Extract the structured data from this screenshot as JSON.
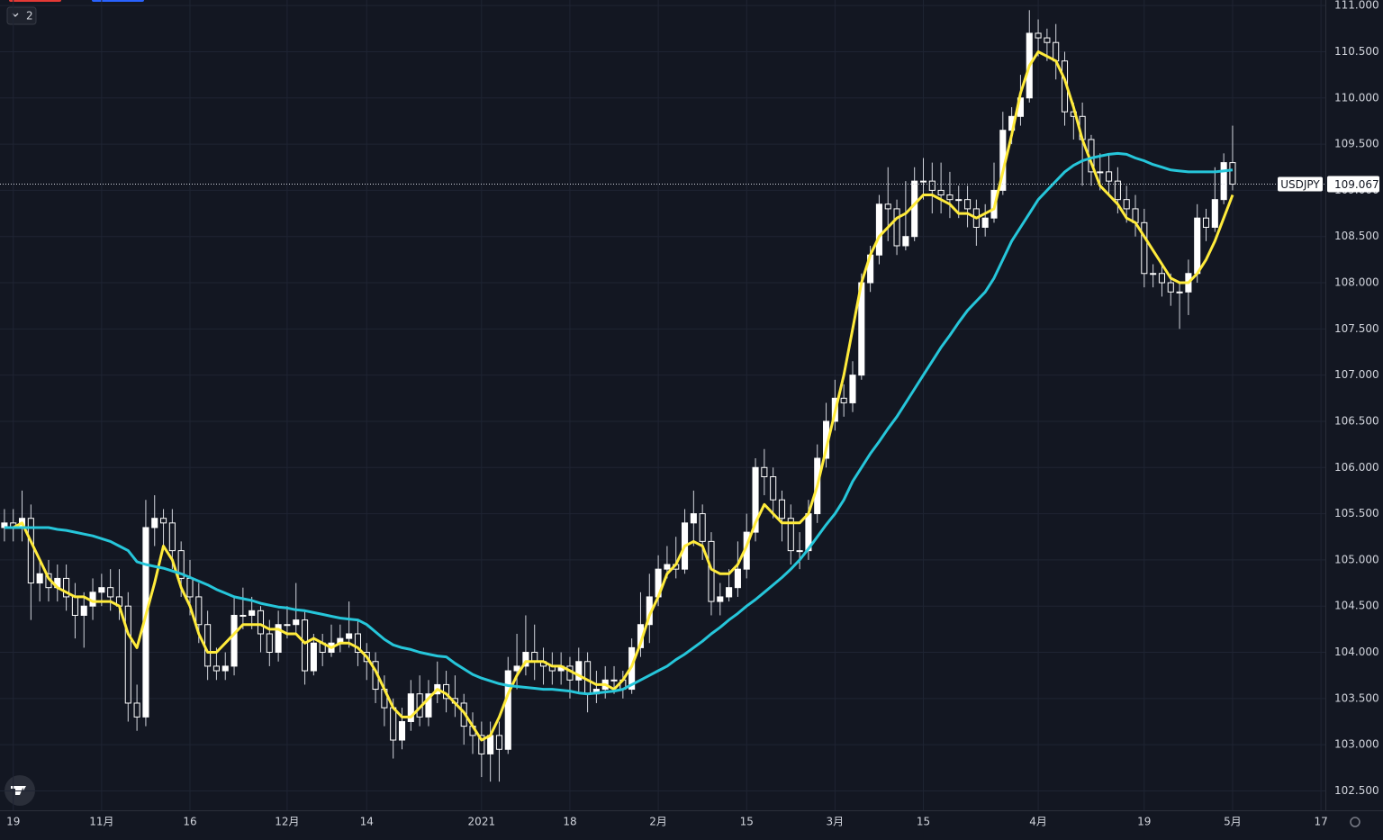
{
  "toolbar": {
    "badge": "2"
  },
  "chart_data": {
    "type": "candlestick",
    "symbol": "USDJPY",
    "background": "#131722",
    "grid": true,
    "up_color": "#ffffff",
    "down_color": "#131722",
    "wick_color": "#d1d4dc",
    "categories": [
      null,
      "19",
      null,
      null,
      null,
      null,
      null,
      null,
      null,
      null,
      null,
      "11月",
      null,
      null,
      null,
      null,
      null,
      null,
      null,
      null,
      null,
      "16",
      null,
      null,
      null,
      null,
      null,
      null,
      null,
      null,
      null,
      null,
      "12月",
      null,
      null,
      null,
      null,
      null,
      null,
      null,
      null,
      "14",
      null,
      null,
      null,
      null,
      null,
      null,
      null,
      null,
      null,
      null,
      null,
      null,
      "2021",
      null,
      null,
      null,
      null,
      null,
      null,
      null,
      null,
      null,
      "18",
      null,
      null,
      null,
      null,
      null,
      null,
      null,
      null,
      null,
      "2月",
      null,
      null,
      null,
      null,
      null,
      null,
      null,
      null,
      null,
      "15",
      null,
      null,
      null,
      null,
      null,
      null,
      null,
      null,
      null,
      "3月",
      null,
      null,
      null,
      null,
      null,
      null,
      null,
      null,
      null,
      "15",
      null,
      null,
      null,
      null,
      null,
      null,
      null,
      null,
      null,
      null,
      null,
      null,
      "4月",
      null,
      null,
      null,
      null,
      null,
      null,
      null,
      null,
      null,
      null,
      null,
      "19",
      null,
      null,
      null,
      null,
      null,
      null,
      null,
      null,
      null,
      "5月",
      null,
      null,
      null,
      null,
      null,
      null,
      null,
      null,
      null,
      "17"
    ],
    "open": [
      105.35,
      105.4,
      105.35,
      105.45,
      104.75,
      104.85,
      104.7,
      104.8,
      104.6,
      104.4,
      104.5,
      104.65,
      104.7,
      104.6,
      104.5,
      103.45,
      103.3,
      105.35,
      105.45,
      105.4,
      105.1,
      104.8,
      104.6,
      104.3,
      103.85,
      103.8,
      103.85,
      104.4,
      104.4,
      104.45,
      104.2,
      104.0,
      104.3,
      104.3,
      104.35,
      103.8,
      104.1,
      104.0,
      104.1,
      104.15,
      104.2,
      104.0,
      103.9,
      103.6,
      103.4,
      103.05,
      103.25,
      103.55,
      103.3,
      103.55,
      103.65,
      103.5,
      103.45,
      103.2,
      103.1,
      102.9,
      103.1,
      102.95,
      103.8,
      103.85,
      104.0,
      103.9,
      103.85,
      103.8,
      103.85,
      103.7,
      103.9,
      103.55,
      103.6,
      103.7,
      103.7,
      103.6,
      104.05,
      104.3,
      104.6,
      104.9,
      104.95,
      104.9,
      105.4,
      105.5,
      105.2,
      104.55,
      104.6,
      104.7,
      104.9,
      105.3,
      106.0,
      105.9,
      105.65,
      105.45,
      105.1,
      105.1,
      105.5,
      106.1,
      106.5,
      106.75,
      106.7,
      107.0,
      108.0,
      108.3,
      108.85,
      108.8,
      108.4,
      108.5,
      109.1,
      109.1,
      109.0,
      108.95,
      108.9,
      108.9,
      108.8,
      108.6,
      108.7,
      109.0,
      109.65,
      109.8,
      110.0,
      110.7,
      110.65,
      110.6,
      110.4,
      109.85,
      109.8,
      109.55,
      109.2,
      109.2,
      109.1,
      108.9,
      108.8,
      108.65,
      108.1,
      108.1,
      108.0,
      107.9,
      107.9,
      108.1,
      108.7,
      108.6,
      108.9,
      109.3,
      null,
      null,
      null,
      null,
      null,
      null,
      null,
      null,
      null,
      null
    ],
    "high": [
      105.55,
      105.55,
      105.75,
      105.6,
      105.0,
      105.0,
      104.95,
      104.95,
      104.75,
      104.65,
      104.8,
      104.85,
      104.9,
      104.9,
      104.65,
      103.65,
      105.65,
      105.7,
      105.55,
      105.55,
      105.2,
      105.0,
      104.75,
      104.45,
      104.05,
      104.0,
      104.6,
      104.7,
      104.6,
      104.5,
      104.35,
      104.45,
      104.5,
      104.75,
      104.45,
      104.2,
      104.2,
      104.3,
      104.3,
      104.55,
      104.35,
      104.1,
      104.0,
      103.75,
      103.5,
      103.4,
      103.7,
      103.75,
      103.7,
      103.9,
      103.8,
      103.75,
      103.55,
      103.35,
      103.25,
      103.25,
      103.25,
      103.95,
      104.2,
      104.4,
      104.3,
      104.05,
      104.0,
      104.0,
      103.95,
      104.05,
      104.0,
      103.8,
      103.85,
      103.85,
      103.8,
      104.15,
      104.65,
      104.85,
      105.05,
      105.15,
      105.25,
      105.55,
      105.75,
      105.6,
      105.3,
      104.75,
      104.9,
      105.2,
      105.5,
      106.1,
      106.2,
      106.0,
      105.75,
      105.6,
      105.3,
      105.65,
      106.25,
      106.7,
      106.95,
      106.9,
      107.15,
      108.1,
      108.4,
      108.95,
      109.25,
      108.9,
      109.1,
      109.25,
      109.35,
      109.3,
      109.3,
      109.2,
      109.05,
      109.05,
      108.9,
      108.85,
      109.3,
      109.85,
      109.9,
      110.25,
      110.95,
      110.85,
      110.75,
      110.8,
      110.5,
      109.95,
      109.95,
      109.6,
      109.4,
      109.4,
      109.25,
      109.05,
      108.95,
      108.8,
      108.2,
      108.2,
      108.1,
      108.0,
      108.25,
      108.85,
      108.8,
      109.25,
      109.4,
      109.7,
      null,
      null,
      null,
      null,
      null,
      null,
      null,
      null,
      null,
      null
    ],
    "low": [
      105.2,
      105.2,
      105.2,
      104.35,
      104.55,
      104.55,
      104.55,
      104.45,
      104.15,
      104.05,
      104.35,
      104.5,
      104.45,
      104.35,
      103.25,
      103.15,
      103.2,
      105.15,
      105.1,
      104.9,
      104.6,
      104.4,
      104.1,
      103.7,
      103.7,
      103.7,
      103.75,
      104.25,
      104.25,
      104.0,
      103.85,
      103.9,
      104.15,
      104.2,
      103.65,
      103.75,
      103.85,
      103.95,
      104.0,
      104.05,
      103.85,
      103.7,
      103.45,
      103.2,
      102.85,
      102.95,
      103.15,
      103.2,
      103.2,
      103.45,
      103.35,
      103.3,
      103.0,
      102.9,
      102.65,
      102.6,
      102.6,
      102.9,
      103.6,
      103.75,
      103.7,
      103.65,
      103.65,
      103.65,
      103.5,
      103.55,
      103.35,
      103.45,
      103.5,
      103.55,
      103.5,
      103.55,
      103.95,
      104.1,
      104.5,
      104.8,
      104.8,
      104.85,
      105.15,
      105.0,
      104.4,
      104.4,
      104.55,
      104.6,
      104.8,
      105.2,
      105.7,
      105.45,
      105.2,
      104.95,
      104.9,
      105.0,
      105.4,
      106.0,
      106.4,
      106.55,
      106.6,
      106.95,
      107.9,
      108.2,
      108.45,
      108.3,
      108.35,
      108.45,
      108.9,
      108.75,
      108.75,
      108.7,
      108.7,
      108.6,
      108.4,
      108.5,
      108.65,
      108.95,
      109.5,
      109.7,
      109.95,
      110.45,
      110.4,
      110.2,
      109.7,
      109.55,
      109.05,
      109.05,
      109.0,
      108.95,
      108.75,
      108.65,
      108.5,
      107.95,
      107.95,
      107.85,
      107.75,
      107.5,
      107.65,
      108.0,
      108.45,
      108.55,
      108.85,
      109.0,
      null,
      null,
      null,
      null,
      null,
      null,
      null,
      null,
      null,
      null
    ],
    "close": [
      105.4,
      105.35,
      105.45,
      104.75,
      104.85,
      104.7,
      104.8,
      104.6,
      104.4,
      104.5,
      104.65,
      104.7,
      104.6,
      104.5,
      103.45,
      103.3,
      105.35,
      105.45,
      105.4,
      105.1,
      104.8,
      104.6,
      104.3,
      103.85,
      103.8,
      103.85,
      104.4,
      104.4,
      104.45,
      104.2,
      104.0,
      104.3,
      104.3,
      104.35,
      103.8,
      104.1,
      104.0,
      104.1,
      104.15,
      104.2,
      104.0,
      103.9,
      103.6,
      103.4,
      103.05,
      103.25,
      103.55,
      103.3,
      103.55,
      103.65,
      103.5,
      103.45,
      103.2,
      103.1,
      102.9,
      103.1,
      102.95,
      103.8,
      103.85,
      104.0,
      103.9,
      103.85,
      103.8,
      103.85,
      103.7,
      103.9,
      103.55,
      103.6,
      103.7,
      103.7,
      103.6,
      104.05,
      104.3,
      104.6,
      104.9,
      104.95,
      104.9,
      105.4,
      105.5,
      105.2,
      104.55,
      104.6,
      104.7,
      104.9,
      105.3,
      106.0,
      105.9,
      105.65,
      105.45,
      105.1,
      105.1,
      105.5,
      106.1,
      106.5,
      106.75,
      106.7,
      107.0,
      108.0,
      108.3,
      108.85,
      108.8,
      108.4,
      108.5,
      109.1,
      109.1,
      109.0,
      108.95,
      108.9,
      108.9,
      108.8,
      108.6,
      108.7,
      109.0,
      109.65,
      109.8,
      110.0,
      110.7,
      110.65,
      110.6,
      110.4,
      109.85,
      109.8,
      109.55,
      109.2,
      109.2,
      109.1,
      108.9,
      108.8,
      108.65,
      108.1,
      108.1,
      108.0,
      107.9,
      107.9,
      108.1,
      108.7,
      108.6,
      108.9,
      109.3,
      109.067,
      null,
      null,
      null,
      null,
      null,
      null,
      null,
      null,
      null,
      null
    ],
    "overlays": [
      {
        "color": "#ffeb3b",
        "values": [
          105.35,
          105.35,
          105.4,
          105.2,
          105.0,
          104.8,
          104.7,
          104.65,
          104.6,
          104.6,
          104.55,
          104.55,
          104.55,
          104.5,
          104.2,
          104.05,
          104.4,
          104.75,
          105.15,
          105.0,
          104.7,
          104.5,
          104.2,
          104.0,
          104.0,
          104.1,
          104.2,
          104.3,
          104.3,
          104.3,
          104.25,
          104.25,
          104.2,
          104.2,
          104.1,
          104.15,
          104.1,
          104.05,
          104.1,
          104.1,
          104.05,
          103.95,
          103.8,
          103.6,
          103.4,
          103.3,
          103.3,
          103.4,
          103.5,
          103.6,
          103.55,
          103.45,
          103.35,
          103.2,
          103.05,
          103.1,
          103.3,
          103.55,
          103.75,
          103.9,
          103.9,
          103.9,
          103.85,
          103.85,
          103.8,
          103.75,
          103.7,
          103.65,
          103.65,
          103.6,
          103.7,
          103.85,
          104.1,
          104.4,
          104.6,
          104.85,
          104.95,
          105.15,
          105.2,
          105.15,
          104.9,
          104.85,
          104.85,
          104.95,
          105.15,
          105.4,
          105.6,
          105.5,
          105.4,
          105.4,
          105.4,
          105.5,
          105.8,
          106.2,
          106.6,
          107.0,
          107.5,
          108.0,
          108.3,
          108.5,
          108.6,
          108.7,
          108.75,
          108.85,
          108.95,
          108.95,
          108.9,
          108.85,
          108.75,
          108.75,
          108.7,
          108.75,
          108.8,
          109.2,
          109.6,
          110.05,
          110.35,
          110.5,
          110.45,
          110.4,
          110.2,
          109.9,
          109.55,
          109.3,
          109.05,
          108.95,
          108.85,
          108.7,
          108.65,
          108.5,
          108.35,
          108.2,
          108.05,
          108.0,
          108.0,
          108.1,
          108.25,
          108.45,
          108.7,
          108.95,
          null,
          null,
          null,
          null,
          null,
          null,
          null,
          null,
          null,
          null
        ]
      },
      {
        "color": "#26c6da",
        "values": [
          105.35,
          105.35,
          105.35,
          105.35,
          105.35,
          105.35,
          105.33,
          105.32,
          105.3,
          105.28,
          105.26,
          105.23,
          105.2,
          105.15,
          105.1,
          104.98,
          104.95,
          104.93,
          104.91,
          104.88,
          104.85,
          104.81,
          104.77,
          104.73,
          104.68,
          104.64,
          104.6,
          104.58,
          104.56,
          104.53,
          104.51,
          104.49,
          104.48,
          104.46,
          104.45,
          104.43,
          104.41,
          104.39,
          104.37,
          104.36,
          104.35,
          104.3,
          104.22,
          104.14,
          104.08,
          104.05,
          104.03,
          104.0,
          103.98,
          103.96,
          103.95,
          103.88,
          103.82,
          103.76,
          103.72,
          103.69,
          103.66,
          103.64,
          103.63,
          103.62,
          103.61,
          103.6,
          103.6,
          103.59,
          103.58,
          103.56,
          103.55,
          103.56,
          103.57,
          103.58,
          103.6,
          103.65,
          103.7,
          103.75,
          103.8,
          103.85,
          103.92,
          103.98,
          104.05,
          104.12,
          104.2,
          104.27,
          104.35,
          104.42,
          104.5,
          104.57,
          104.65,
          104.73,
          104.81,
          104.9,
          105.0,
          105.12,
          105.25,
          105.38,
          105.5,
          105.65,
          105.85,
          106.0,
          106.15,
          106.28,
          106.42,
          106.55,
          106.7,
          106.85,
          107.0,
          107.15,
          107.3,
          107.43,
          107.57,
          107.7,
          107.8,
          107.9,
          108.05,
          108.25,
          108.45,
          108.6,
          108.75,
          108.9,
          109.0,
          109.1,
          109.2,
          109.27,
          109.32,
          109.35,
          109.37,
          109.39,
          109.4,
          109.39,
          109.35,
          109.32,
          109.28,
          109.25,
          109.22,
          109.21,
          109.2,
          109.2,
          109.2,
          109.2,
          109.21,
          109.22,
          null,
          null,
          null,
          null,
          null,
          null,
          null,
          null,
          null,
          null
        ]
      }
    ],
    "ylim": [
      102.29,
      111.06
    ],
    "yticks": [
      {
        "value": 111,
        "label": "111.000"
      },
      {
        "value": 110.5,
        "label": "110.500"
      },
      {
        "value": 110,
        "label": "110.000"
      },
      {
        "value": 109.5,
        "label": "109.500"
      },
      {
        "value": 109,
        "label": "109.000"
      },
      {
        "value": 108.5,
        "label": "108.500"
      },
      {
        "value": 108,
        "label": "108.000"
      },
      {
        "value": 107.5,
        "label": "107.500"
      },
      {
        "value": 107,
        "label": "107.000"
      },
      {
        "value": 106.5,
        "label": "106.500"
      },
      {
        "value": 106,
        "label": "106.000"
      },
      {
        "value": 105.5,
        "label": "105.500"
      },
      {
        "value": 105,
        "label": "105.000"
      },
      {
        "value": 104.5,
        "label": "104.500"
      },
      {
        "value": 104,
        "label": "104.000"
      },
      {
        "value": 103.5,
        "label": "103.500"
      },
      {
        "value": 103,
        "label": "103.000"
      },
      {
        "value": 102.5,
        "label": "102.500"
      }
    ]
  }
}
